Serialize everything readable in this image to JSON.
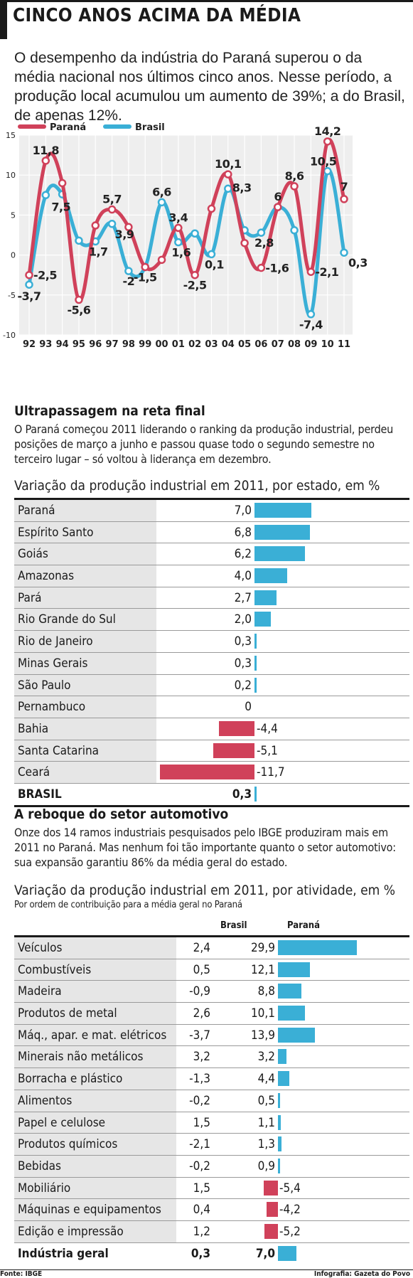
{
  "header": {
    "title": "CINCO ANOS ACIMA DA MÉDIA",
    "intro": "O desempenho da indústria do Paraná superou o da média nacional nos últimos cinco anos. Nesse período, a produção local acumulou um aumento de 39%; a do Brasil, de apenas 12%."
  },
  "chart_data": [
    {
      "type": "line",
      "x": [
        "92",
        "93",
        "94",
        "95",
        "96",
        "97",
        "98",
        "99",
        "00",
        "01",
        "02",
        "03",
        "04",
        "05",
        "06",
        "07",
        "08",
        "09",
        "10",
        "11"
      ],
      "series": [
        {
          "name": "Paraná",
          "color": "#d0415a",
          "values": [
            -2.5,
            11.8,
            9.0,
            -5.6,
            3.7,
            5.7,
            3.5,
            -1.5,
            -0.6,
            3.4,
            -2.5,
            5.8,
            10.1,
            1.5,
            -1.6,
            6.0,
            8.6,
            -2.1,
            14.2,
            7.0
          ],
          "labels": [
            "-2,5",
            "11,8",
            "",
            "-5,6",
            "",
            "5,7",
            "",
            "-1,5",
            "",
            "3,4",
            "-2,5",
            "",
            "10,1",
            "",
            "-1,6",
            "6",
            "8,6",
            "-2,1",
            "14,2",
            "7"
          ]
        },
        {
          "name": "Brasil",
          "color": "#3aafd6",
          "values": [
            -3.7,
            7.5,
            7.6,
            1.8,
            1.7,
            3.9,
            -2.0,
            -1.5,
            6.6,
            1.6,
            2.7,
            0.1,
            8.3,
            3.1,
            2.8,
            6.0,
            3.1,
            -7.4,
            10.5,
            0.3
          ],
          "labels": [
            "-3,7",
            "7,5",
            "",
            "",
            "1,7",
            "3,9",
            "-2",
            "",
            "6,6",
            "1,6",
            "",
            "0,1",
            "8,3",
            "",
            "2,8",
            "",
            "",
            "-7,4",
            "10,5",
            "0,3"
          ]
        }
      ],
      "ylim": [
        -10,
        15
      ],
      "yticks": [
        -10,
        -5,
        0,
        5,
        10,
        15
      ],
      "grid": true,
      "legend": "top-left"
    },
    {
      "type": "bar",
      "title": "Variação da produção industrial em 2011, por estado, em %",
      "categories": [
        "Paraná",
        "Espírito Santo",
        "Goiás",
        "Amazonas",
        "Pará",
        "Rio Grande do Sul",
        "Rio de Janeiro",
        "Minas Gerais",
        "São Paulo",
        "Pernambuco",
        "Bahia",
        "Santa Catarina",
        "Ceará"
      ],
      "values": [
        7.0,
        6.8,
        6.2,
        4.0,
        2.7,
        2.0,
        0.3,
        0.3,
        0.2,
        0,
        -4.4,
        -5.1,
        -11.7
      ],
      "labels": [
        "7,0",
        "6,8",
        "6,2",
        "4,0",
        "2,7",
        "2,0",
        "0,3",
        "0,3",
        "0,2",
        "0",
        "-4,4",
        "-5,1",
        "-11,7"
      ],
      "total": {
        "label": "BRASIL",
        "value": 0.3,
        "value_label": "0,3"
      }
    },
    {
      "type": "bar",
      "title": "Variação da produção industrial em 2011, por atividade, em %",
      "subtitle": "Por ordem de contribuição para a média geral no Paraná",
      "columns": [
        "Brasil",
        "Paraná"
      ],
      "categories": [
        "Veículos",
        "Combustíveis",
        "Madeira",
        "Produtos de metal",
        "Máq., apar. e mat. elétricos",
        "Minerais não metálicos",
        "Borracha e plástico",
        "Alimentos",
        "Papel e celulose",
        "Produtos químicos",
        "Bebidas",
        "Mobiliário",
        "Máquinas e equipamentos",
        "Edição e impressão"
      ],
      "brasil": [
        "2,4",
        "0,5",
        "-0,9",
        "2,6",
        "-3,7",
        "3,2",
        "-1,3",
        "-0,2",
        "1,5",
        "-2,1",
        "-0,2",
        "1,5",
        "0,4",
        "1,2"
      ],
      "parana_values": [
        29.9,
        12.1,
        8.8,
        10.1,
        13.9,
        3.2,
        4.4,
        0.5,
        1.1,
        1.3,
        0.9,
        -5.4,
        -4.2,
        -5.2
      ],
      "parana_labels": [
        "29,9",
        "12,1",
        "8,8",
        "10,1",
        "13,9",
        "3,2",
        "4,4",
        "0,5",
        "1,1",
        "1,3",
        "0,9",
        "-5,4",
        "-4,2",
        "-5,2"
      ],
      "total": {
        "label": "Indústria geral",
        "brasil": "0,3",
        "parana_label": "7,0",
        "parana_value": 7.0
      }
    }
  ],
  "section2": {
    "title": "Ultrapassagem na reta final",
    "text": "O Paraná começou 2011 liderando o ranking da produção industrial, perdeu posições de março a junho e passou quase todo o segundo semestre no terceiro lugar – só voltou à liderança em dezembro."
  },
  "section3": {
    "title": "A reboque do setor automotivo",
    "text": "Onze dos 14 ramos industriais pesquisados pelo IBGE produziram mais em 2011 no Paraná. Mas nenhum foi tão importante quanto o setor automotivo: sua expansão garantiu 86% da média geral do estado."
  },
  "footer": {
    "source": "Fonte: IBGE",
    "credit": "Infografia: Gazeta do Povo"
  },
  "colors": {
    "parana": "#d0415a",
    "brasil": "#3aafd6",
    "positive_bar": "#3aafd6",
    "negative_bar": "#d0415a"
  }
}
